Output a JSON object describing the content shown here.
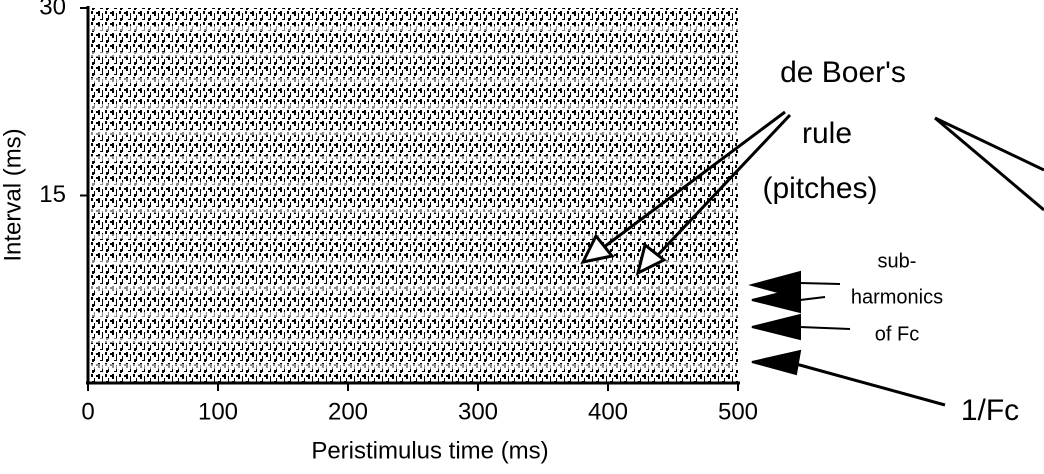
{
  "chart_data": {
    "type": "raster",
    "x_label": "Peristimulus time (ms)",
    "y_label": "Interval (ms)",
    "xlim": [
      0,
      500
    ],
    "xticks": [
      0,
      100,
      200,
      300,
      400,
      500
    ],
    "ylim": [
      0,
      30
    ],
    "yticks": [
      15,
      30
    ],
    "annotations": {
      "pitch_rule": [
        "de Boer's",
        "rule",
        "(pitches)"
      ],
      "subharmonics": [
        "sub-",
        "harmonics",
        "of Fc"
      ],
      "fundamental": "1/Fc"
    }
  }
}
